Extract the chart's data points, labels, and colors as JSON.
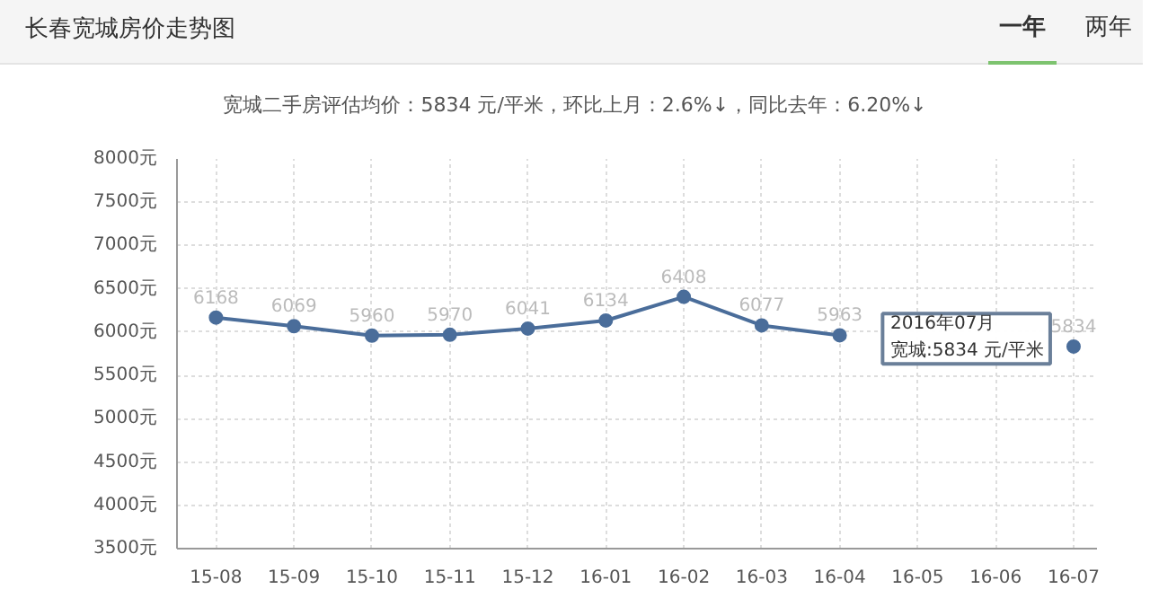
{
  "chart_data": {
    "type": "line",
    "title": "长春宽城房价走势图",
    "subtitle": "宽城二手房评估均价：5834 元/平米，环比上月：2.6%↓，同比去年：6.20%↓",
    "categories": [
      "15-08",
      "15-09",
      "15-10",
      "15-11",
      "15-12",
      "16-01",
      "16-02",
      "16-03",
      "16-04",
      "16-05",
      "16-06",
      "16-07"
    ],
    "series": [
      {
        "color": "#4a6d9a",
        "values": [
          6168,
          6069,
          5960,
          5970,
          6041,
          6134,
          6408,
          6077,
          5963,
          null,
          null,
          5834
        ]
      }
    ],
    "ylim": [
      3500,
      8000
    ],
    "yticks": [
      {
        "value": 3500,
        "label": "3500元"
      },
      {
        "value": 4000,
        "label": "4000元"
      },
      {
        "value": 4500,
        "label": "4500元"
      },
      {
        "value": 5000,
        "label": "5000元"
      },
      {
        "value": 5500,
        "label": "5500元"
      },
      {
        "value": 6000,
        "label": "6000元"
      },
      {
        "value": 6500,
        "label": "6500元"
      },
      {
        "value": 7000,
        "label": "7000元"
      },
      {
        "value": 7500,
        "label": "7500元"
      },
      {
        "value": 8000,
        "label": "8000元"
      }
    ],
    "annotations": [
      "一年",
      "两年",
      "2016年07月",
      "宽城:5834 元/平米"
    ],
    "data_labels": true,
    "grid": true,
    "marker": "circle",
    "line_style": "solid"
  }
}
